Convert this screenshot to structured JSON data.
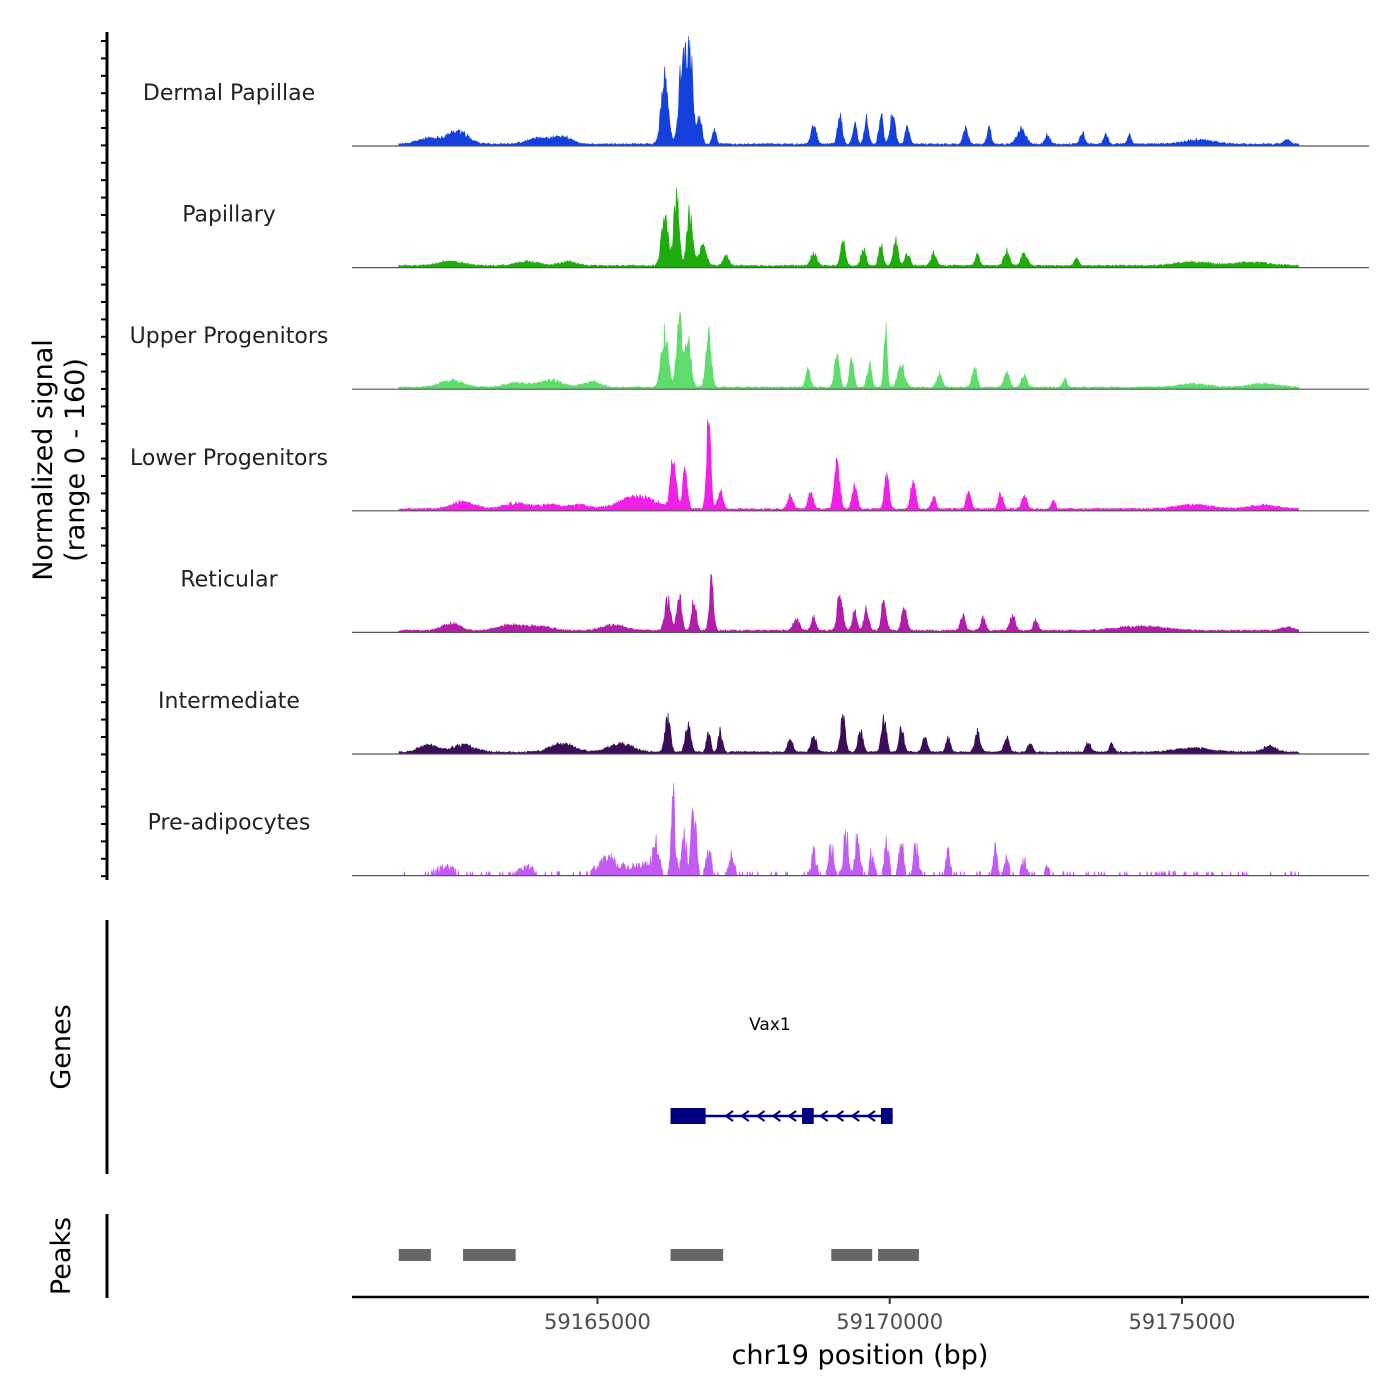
{
  "chart_data": {
    "type": "area",
    "title": "",
    "ylabel_line1": "Normalized signal",
    "ylabel_line2": "(range 0 - 160)",
    "ylim": [
      0,
      160
    ],
    "xlabel": "chr19 position (bp)",
    "xlim": [
      59160800,
      59178200
    ],
    "x_ticks": [
      59165000,
      59170000,
      59175000
    ],
    "x_tick_labels": [
      "59165000",
      "59170000",
      "59175000"
    ],
    "signal_range": [
      59161600,
      59177000
    ],
    "tracks": [
      {
        "name": "Dermal Papillae",
        "color": "#1440DC",
        "seed": 11,
        "peaks": [
          [
            59166150,
            60,
            90
          ],
          [
            59166450,
            55,
            120
          ],
          [
            59166580,
            55,
            125
          ],
          [
            59166750,
            35,
            40
          ],
          [
            59167000,
            35,
            20
          ],
          [
            59168700,
            45,
            25
          ],
          [
            59169150,
            40,
            40
          ],
          [
            59169400,
            35,
            28
          ],
          [
            59169600,
            35,
            38
          ],
          [
            59169850,
            35,
            42
          ],
          [
            59170050,
            40,
            48
          ],
          [
            59170300,
            35,
            25
          ],
          [
            59171300,
            40,
            22
          ],
          [
            59171700,
            35,
            22
          ],
          [
            59172250,
            70,
            22
          ],
          [
            59172700,
            40,
            14
          ],
          [
            59173300,
            40,
            16
          ],
          [
            59173700,
            35,
            15
          ],
          [
            59174100,
            35,
            12
          ]
        ],
        "bumps": [
          [
            59162100,
            180,
            8
          ],
          [
            59162600,
            180,
            18
          ],
          [
            59164000,
            200,
            8
          ],
          [
            59164400,
            150,
            10
          ],
          [
            59175300,
            250,
            6
          ],
          [
            59176800,
            50,
            6
          ]
        ]
      },
      {
        "name": "Papillary",
        "color": "#1FAD0D",
        "seed": 23,
        "peaks": [
          [
            59166150,
            55,
            70
          ],
          [
            59166350,
            45,
            95
          ],
          [
            59166580,
            50,
            75
          ],
          [
            59166800,
            60,
            28
          ],
          [
            59167200,
            50,
            14
          ],
          [
            59168700,
            50,
            18
          ],
          [
            59169200,
            40,
            40
          ],
          [
            59169550,
            40,
            25
          ],
          [
            59169850,
            35,
            32
          ],
          [
            59170100,
            40,
            38
          ],
          [
            59170300,
            45,
            16
          ],
          [
            59170750,
            45,
            18
          ],
          [
            59171500,
            40,
            16
          ],
          [
            59172000,
            45,
            22
          ],
          [
            59172300,
            50,
            20
          ],
          [
            59173200,
            40,
            10
          ]
        ],
        "bumps": [
          [
            59162500,
            200,
            7
          ],
          [
            59163800,
            200,
            6
          ],
          [
            59164500,
            150,
            6
          ],
          [
            59175200,
            300,
            5
          ],
          [
            59176200,
            300,
            5
          ]
        ]
      },
      {
        "name": "Upper Progenitors",
        "color": "#5EDC6C",
        "seed": 37,
        "peaks": [
          [
            59166150,
            60,
            75
          ],
          [
            59166400,
            45,
            98
          ],
          [
            59166550,
            50,
            65
          ],
          [
            59166900,
            45,
            72
          ],
          [
            59168600,
            40,
            25
          ],
          [
            59169100,
            40,
            50
          ],
          [
            59169350,
            35,
            40
          ],
          [
            59169650,
            35,
            35
          ],
          [
            59169930,
            28,
            80
          ],
          [
            59170200,
            60,
            30
          ],
          [
            59170850,
            45,
            18
          ],
          [
            59171450,
            40,
            28
          ],
          [
            59172000,
            45,
            22
          ],
          [
            59172300,
            45,
            18
          ],
          [
            59173000,
            35,
            12
          ]
        ],
        "bumps": [
          [
            59162500,
            200,
            10
          ],
          [
            59163600,
            200,
            6
          ],
          [
            59164200,
            200,
            10
          ],
          [
            59164900,
            150,
            8
          ],
          [
            59175200,
            250,
            5
          ],
          [
            59176400,
            250,
            5
          ]
        ]
      },
      {
        "name": "Lower Progenitors",
        "color": "#F020E6",
        "seed": 53,
        "peaks": [
          [
            59166300,
            45,
            78
          ],
          [
            59166500,
            40,
            55
          ],
          [
            59166900,
            35,
            125
          ],
          [
            59167100,
            45,
            25
          ],
          [
            59168300,
            45,
            18
          ],
          [
            59168650,
            45,
            22
          ],
          [
            59169100,
            45,
            62
          ],
          [
            59169400,
            40,
            35
          ],
          [
            59169950,
            40,
            48
          ],
          [
            59170400,
            40,
            42
          ],
          [
            59170750,
            40,
            18
          ],
          [
            59171350,
            40,
            25
          ],
          [
            59171900,
            40,
            22
          ],
          [
            59172300,
            45,
            18
          ],
          [
            59172800,
            35,
            12
          ]
        ],
        "bumps": [
          [
            59162700,
            200,
            10
          ],
          [
            59163600,
            200,
            8
          ],
          [
            59164200,
            200,
            6
          ],
          [
            59164700,
            150,
            6
          ],
          [
            59165700,
            300,
            18
          ],
          [
            59175200,
            300,
            6
          ],
          [
            59176400,
            250,
            5
          ]
        ]
      },
      {
        "name": "Reticular",
        "color": "#B41DAB",
        "seed": 71,
        "peaks": [
          [
            59166200,
            50,
            45
          ],
          [
            59166400,
            40,
            50
          ],
          [
            59166650,
            40,
            42
          ],
          [
            59166950,
            35,
            72
          ],
          [
            59168400,
            50,
            18
          ],
          [
            59168700,
            40,
            20
          ],
          [
            59169150,
            45,
            52
          ],
          [
            59169400,
            40,
            30
          ],
          [
            59169600,
            40,
            30
          ],
          [
            59169900,
            40,
            45
          ],
          [
            59170250,
            45,
            32
          ],
          [
            59171250,
            40,
            22
          ],
          [
            59171600,
            40,
            18
          ],
          [
            59172100,
            45,
            22
          ],
          [
            59172500,
            35,
            15
          ]
        ],
        "bumps": [
          [
            59162500,
            150,
            10
          ],
          [
            59163500,
            200,
            8
          ],
          [
            59164000,
            200,
            6
          ],
          [
            59165300,
            200,
            8
          ],
          [
            59174300,
            400,
            6
          ],
          [
            59176800,
            100,
            5
          ]
        ]
      },
      {
        "name": "Intermediate",
        "color": "#3B0C57",
        "seed": 89,
        "peaks": [
          [
            59166200,
            45,
            48
          ],
          [
            59166550,
            45,
            40
          ],
          [
            59166900,
            35,
            28
          ],
          [
            59167100,
            35,
            30
          ],
          [
            59168300,
            45,
            18
          ],
          [
            59168700,
            45,
            22
          ],
          [
            59169200,
            40,
            55
          ],
          [
            59169500,
            40,
            32
          ],
          [
            59169900,
            40,
            52
          ],
          [
            59170200,
            40,
            35
          ],
          [
            59170600,
            40,
            22
          ],
          [
            59171000,
            40,
            20
          ],
          [
            59171500,
            45,
            28
          ],
          [
            59172000,
            40,
            22
          ],
          [
            59172400,
            40,
            14
          ],
          [
            59173400,
            40,
            15
          ],
          [
            59173800,
            40,
            12
          ]
        ],
        "bumps": [
          [
            59162100,
            150,
            10
          ],
          [
            59162700,
            200,
            10
          ],
          [
            59164400,
            200,
            12
          ],
          [
            59165400,
            200,
            12
          ],
          [
            59175200,
            300,
            6
          ],
          [
            59176500,
            120,
            8
          ]
        ]
      },
      {
        "name": "Pre-adipocytes",
        "color": "#C25AF4",
        "seed": 97,
        "peaks": [
          [
            59166000,
            45,
            45
          ],
          [
            59166300,
            35,
            100
          ],
          [
            59166480,
            40,
            60
          ],
          [
            59166650,
            40,
            95
          ],
          [
            59166900,
            45,
            35
          ],
          [
            59167300,
            45,
            28
          ],
          [
            59168700,
            45,
            30
          ],
          [
            59169000,
            40,
            45
          ],
          [
            59169250,
            40,
            62
          ],
          [
            59169450,
            45,
            50
          ],
          [
            59169700,
            35,
            35
          ],
          [
            59169950,
            40,
            40
          ],
          [
            59170200,
            40,
            52
          ],
          [
            59170450,
            45,
            38
          ],
          [
            59171000,
            40,
            30
          ],
          [
            59171800,
            35,
            38
          ],
          [
            59172000,
            35,
            28
          ],
          [
            59172300,
            45,
            20
          ],
          [
            59172700,
            40,
            12
          ]
        ],
        "bumps": [
          [
            59162400,
            200,
            12
          ],
          [
            59163800,
            150,
            12
          ],
          [
            59165200,
            200,
            22
          ],
          [
            59165800,
            200,
            15
          ],
          [
            59174800,
            300,
            5
          ]
        ],
        "sparse": true
      }
    ],
    "gene": {
      "name": "Vax1",
      "color": "#000080",
      "strand": "-",
      "start": 59166250,
      "end": 59170050,
      "exons": [
        [
          59166250,
          59166850
        ],
        [
          59168500,
          59168700
        ],
        [
          59169850,
          59170050
        ]
      ]
    },
    "peaks_track": {
      "color": "#666666",
      "regions": [
        [
          59161600,
          59162150
        ],
        [
          59162700,
          59163600
        ],
        [
          59166250,
          59167150
        ],
        [
          59169000,
          59169700
        ],
        [
          59169800,
          59170500
        ]
      ]
    },
    "panel_labels": {
      "genes": "Genes",
      "peaks": "Peaks"
    }
  }
}
